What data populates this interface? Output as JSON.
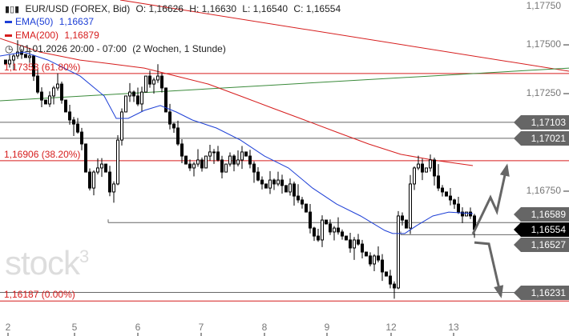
{
  "header": {
    "symbol": "EUR/USD (FOREX, Bid)",
    "open": "O: 1,16626",
    "high": "H: 1,16630",
    "low": "L: 1,16540",
    "close": "C: 1,16554",
    "ema50_label": "EMA(50)",
    "ema50_value": "1,16637",
    "ema200_label": "EMA(200)",
    "ema200_value": "1,16879",
    "period": "01.01.2026 20:00 - 07:00",
    "range": "(2 Wochen, 1 Stunde)"
  },
  "watermark": "stock3",
  "colors": {
    "ema50": "#1d3fd6",
    "ema200": "#d61d1d",
    "fib": "#d61d1d",
    "trend_up": "#3a8a3a",
    "level": "#666666",
    "arrow": "#666666"
  },
  "fib_levels": [
    {
      "label": "1,17353 (61.80%)",
      "price": 1.17353
    },
    {
      "label": "1,16906 (38.20%)",
      "price": 1.16906
    },
    {
      "label": "1,16187 (0.00%)",
      "price": 1.16187
    }
  ],
  "levels": [
    {
      "label": "1,17103",
      "price": 1.17103,
      "from_bar": -1
    },
    {
      "label": "1,17021",
      "price": 1.17021,
      "from_bar": -1
    },
    {
      "label": "1,16589",
      "price": 1.16589,
      "from_bar": 26
    },
    {
      "label": "1,16527",
      "price": 1.16527,
      "from_bar": 99
    },
    {
      "label": "1,16231",
      "price": 1.16231,
      "from_bar": -1
    }
  ],
  "current_price": {
    "label": "1,16554",
    "price": 1.16554
  },
  "chart_data": {
    "type": "candlestick",
    "title": "EUR/USD (FOREX, Bid)",
    "y_ticks": [
      {
        "label": "1,17750",
        "value": 1.1775
      },
      {
        "label": "1,17500",
        "value": 1.175
      },
      {
        "label": "1,17250",
        "value": 1.1725
      },
      {
        "label": "1,16750",
        "value": 1.1675
      }
    ],
    "x_ticks": [
      {
        "label": "2",
        "bar": 1
      },
      {
        "label": "5",
        "bar": 17.6
      },
      {
        "label": "6",
        "bar": 33.4
      },
      {
        "label": "7",
        "bar": 49.2
      },
      {
        "label": "8",
        "bar": 65
      },
      {
        "label": "9",
        "bar": 80.6
      },
      {
        "label": "12",
        "bar": 96.6
      },
      {
        "label": "13",
        "bar": 112.2
      }
    ],
    "closes": [
      1.17402,
      1.17422,
      1.17443,
      1.17463,
      1.17451,
      1.17435,
      1.17443,
      1.1734,
      1.17258,
      1.17217,
      1.17197,
      1.17238,
      1.17279,
      1.17299,
      1.17217,
      1.17156,
      1.17115,
      1.17094,
      1.17053,
      1.16992,
      1.16848,
      1.16766,
      1.16848,
      1.16869,
      1.16889,
      1.16848,
      1.16746,
      1.16787,
      1.17012,
      1.17156,
      1.17238,
      1.17258,
      1.17238,
      1.17197,
      1.17258,
      1.1734,
      1.17299,
      1.1732,
      1.1734,
      1.17279,
      1.17156,
      1.17094,
      1.17074,
      1.16992,
      1.1693,
      1.16889,
      1.16869,
      1.16889,
      1.1691,
      1.16869,
      1.1693,
      1.16951,
      1.16951,
      1.1691,
      1.16848,
      1.16889,
      1.1693,
      1.16889,
      1.1691,
      1.16951,
      1.1693,
      1.16889,
      1.16848,
      1.16807,
      1.16787,
      1.16766,
      1.16807,
      1.16787,
      1.16807,
      1.16779,
      1.16746,
      1.16787,
      1.16725,
      1.16705,
      1.16684,
      1.16643,
      1.16561,
      1.1652,
      1.165,
      1.16602,
      1.16582,
      1.16541,
      1.16561,
      1.16541,
      1.1652,
      1.165,
      1.16459,
      1.165,
      1.16479,
      1.16438,
      1.16418,
      1.16377,
      1.16418,
      1.16397,
      1.16336,
      1.16315,
      1.16274,
      1.16254,
      1.16623,
      1.16602,
      1.16561,
      1.16787,
      1.16869,
      1.16889,
      1.16848,
      1.16869,
      1.1691,
      1.16828,
      1.16766,
      1.16746,
      1.16725,
      1.16705,
      1.16684,
      1.16643,
      1.16623,
      1.16643,
      1.16623,
      1.16554
    ],
    "ema50": [
      [
        -1,
        1.17443
      ],
      [
        5,
        1.17463
      ],
      [
        11,
        1.17422
      ],
      [
        19,
        1.1734
      ],
      [
        25,
        1.17238
      ],
      [
        28,
        1.17123
      ],
      [
        31,
        1.17123
      ],
      [
        35,
        1.17164
      ],
      [
        39,
        1.17189
      ],
      [
        43,
        1.17156
      ],
      [
        47,
        1.17115
      ],
      [
        53,
        1.17074
      ],
      [
        59,
        1.17012
      ],
      [
        65,
        1.1693
      ],
      [
        71,
        1.16869
      ],
      [
        77,
        1.16766
      ],
      [
        83,
        1.16684
      ],
      [
        89,
        1.16623
      ],
      [
        95,
        1.16549
      ],
      [
        97,
        1.16533
      ],
      [
        100,
        1.16533
      ],
      [
        103,
        1.16574
      ],
      [
        107,
        1.16623
      ],
      [
        111,
        1.16643
      ],
      [
        117,
        1.16635
      ]
    ],
    "ema200": [
      [
        -1,
        1.17533
      ],
      [
        9,
        1.17463
      ],
      [
        19,
        1.17422
      ],
      [
        27,
        1.17402
      ],
      [
        35,
        1.17381
      ],
      [
        43,
        1.1734
      ],
      [
        51,
        1.17299
      ],
      [
        59,
        1.17238
      ],
      [
        67,
        1.17176
      ],
      [
        75,
        1.17115
      ],
      [
        83,
        1.17053
      ],
      [
        91,
        1.16992
      ],
      [
        99,
        1.16939
      ],
      [
        107,
        1.1691
      ],
      [
        117,
        1.16881
      ]
    ],
    "trendlines": [
      {
        "name": "downtrend",
        "color": "#d61d1d",
        "points": [
          [
            29,
            1.1773
          ],
          [
            141,
            1.17365
          ]
        ]
      },
      {
        "name": "uptrend",
        "color": "#3a8a3a",
        "points": [
          [
            -1,
            1.17213
          ],
          [
            141,
            1.17381
          ]
        ]
      }
    ],
    "scenario_arrows": [
      {
        "name": "up",
        "points": [
          [
            117,
            1.1653
          ],
          [
            121.4,
            1.16718
          ],
          [
            123,
            1.16646
          ],
          [
            125.5,
            1.1688
          ]
        ]
      },
      {
        "name": "down",
        "points": [
          [
            117.4,
            1.16487
          ],
          [
            121,
            1.1648
          ],
          [
            124,
            1.16213
          ]
        ]
      }
    ]
  }
}
